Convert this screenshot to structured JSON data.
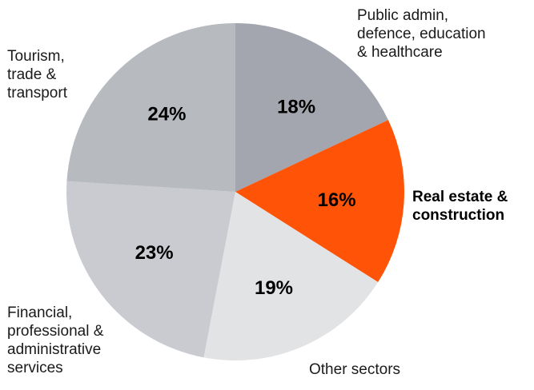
{
  "chart_data": {
    "type": "pie",
    "title": "",
    "start_angle_deg": 0,
    "direction": "clockwise",
    "slices": [
      {
        "label_lines": [
          "Public admin,",
          "defence, education",
          "& healthcare"
        ],
        "value": 18,
        "value_label": "18%",
        "color": "#a3a6ae",
        "emphasis": false
      },
      {
        "label_lines": [
          "Real estate &",
          "construction"
        ],
        "value": 16,
        "value_label": "16%",
        "color": "#ff5308",
        "emphasis": true
      },
      {
        "label_lines": [
          "Other sectors"
        ],
        "value": 19,
        "value_label": "19%",
        "color": "#e2e3e5",
        "emphasis": false
      },
      {
        "label_lines": [
          "Financial,",
          "professional &",
          "administrative",
          "services"
        ],
        "value": 23,
        "value_label": "23%",
        "color": "#c9cbd0",
        "emphasis": false
      },
      {
        "label_lines": [
          "Tourism,",
          "trade &",
          "transport"
        ],
        "value": 24,
        "value_label": "24%",
        "color": "#b7babf",
        "emphasis": false
      }
    ]
  }
}
